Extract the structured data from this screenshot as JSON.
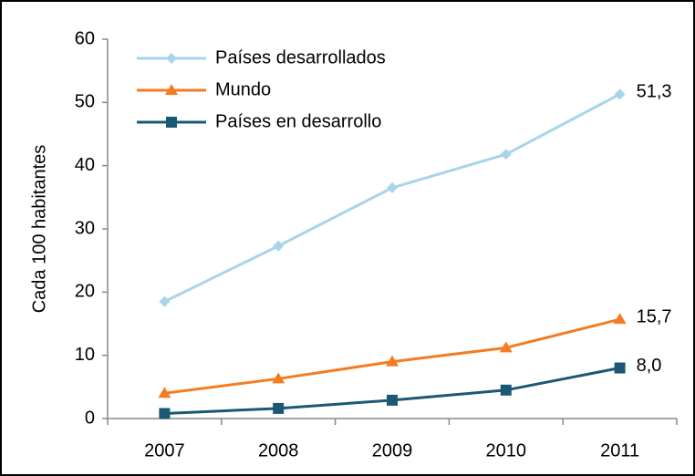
{
  "chart_data": {
    "type": "line",
    "y_label": "Cada 100 habitantes",
    "categories": [
      "2007",
      "2008",
      "2009",
      "2010",
      "2011"
    ],
    "series": [
      {
        "name": "Países desarrollados",
        "color": "#a6d5ea",
        "marker": "diamond",
        "values": [
          18.5,
          27.3,
          36.5,
          41.8,
          51.3
        ],
        "value_labels": [
          null,
          null,
          null,
          null,
          "51,3"
        ]
      },
      {
        "name": "Mundo",
        "color": "#f47c22",
        "marker": "triangle",
        "values": [
          4.0,
          6.3,
          9.0,
          11.2,
          15.7
        ],
        "value_labels": [
          null,
          null,
          null,
          null,
          "15,7"
        ]
      },
      {
        "name": "Países en desarrollo",
        "color": "#1b5873",
        "marker": "square",
        "values": [
          0.8,
          1.6,
          2.9,
          4.5,
          8.0
        ],
        "value_labels": [
          null,
          null,
          null,
          null,
          "8,0"
        ]
      }
    ],
    "ylim": [
      0,
      60
    ],
    "yticks": [
      0,
      10,
      20,
      30,
      40,
      50,
      60
    ],
    "grid": false,
    "legend": "upper left"
  }
}
